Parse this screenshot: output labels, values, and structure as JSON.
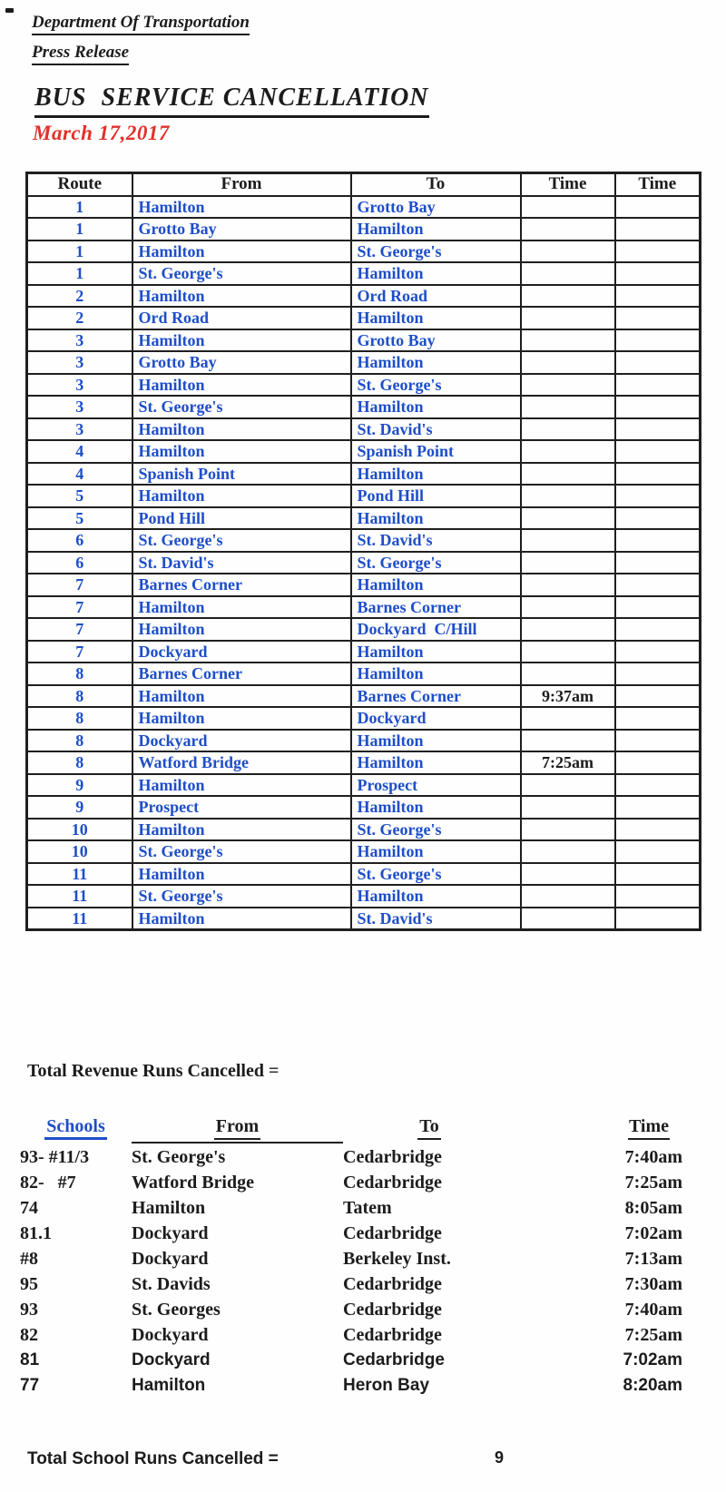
{
  "header": {
    "org_line": "Department Of Transportation",
    "press_line": "Press Release",
    "title": "BUS  SERVICE CANCELLATION",
    "date": "March 17,2017"
  },
  "colors": {
    "accent_blue": "#1e4ec8",
    "date_red": "#e2312a",
    "ink": "#1c1c1c"
  },
  "route_table": {
    "headers": [
      "Route",
      "From",
      "To",
      "Time",
      "Time"
    ],
    "rows": [
      {
        "route": "1",
        "from": "Hamilton",
        "to": "Grotto Bay",
        "time1": "",
        "time2": ""
      },
      {
        "route": "1",
        "from": "Grotto Bay",
        "to": "Hamilton",
        "time1": "",
        "time2": ""
      },
      {
        "route": "1",
        "from": "Hamilton",
        "to": "St. George's",
        "time1": "",
        "time2": ""
      },
      {
        "route": "1",
        "from": "St. George's",
        "to": "Hamilton",
        "time1": "",
        "time2": ""
      },
      {
        "route": "2",
        "from": "Hamilton",
        "to": "Ord Road",
        "time1": "",
        "time2": ""
      },
      {
        "route": "2",
        "from": "Ord Road",
        "to": "Hamilton",
        "time1": "",
        "time2": ""
      },
      {
        "route": "3",
        "from": "Hamilton",
        "to": "Grotto Bay",
        "time1": "",
        "time2": ""
      },
      {
        "route": "3",
        "from": "Grotto Bay",
        "to": "Hamilton",
        "time1": "",
        "time2": ""
      },
      {
        "route": "3",
        "from": "Hamilton",
        "to": "St. George's",
        "time1": "",
        "time2": ""
      },
      {
        "route": "3",
        "from": "St. George's",
        "to": "Hamilton",
        "time1": "",
        "time2": ""
      },
      {
        "route": "3",
        "from": "Hamilton",
        "to": "St. David's",
        "time1": "",
        "time2": ""
      },
      {
        "route": "4",
        "from": "Hamilton",
        "to": "Spanish Point",
        "time1": "",
        "time2": ""
      },
      {
        "route": "4",
        "from": "Spanish Point",
        "to": "Hamilton",
        "time1": "",
        "time2": ""
      },
      {
        "route": "5",
        "from": "Hamilton",
        "to": "Pond Hill",
        "time1": "",
        "time2": ""
      },
      {
        "route": "5",
        "from": "Pond Hill",
        "to": "Hamilton",
        "time1": "",
        "time2": ""
      },
      {
        "route": "6",
        "from": "St. George's",
        "to": "St. David's",
        "time1": "",
        "time2": ""
      },
      {
        "route": "6",
        "from": "St. David's",
        "to": "St. George's",
        "time1": "",
        "time2": ""
      },
      {
        "route": "7",
        "from": "Barnes Corner",
        "to": "Hamilton",
        "time1": "",
        "time2": ""
      },
      {
        "route": "7",
        "from": "Hamilton",
        "to": "Barnes Corner",
        "time1": "",
        "time2": ""
      },
      {
        "route": "7",
        "from": "Hamilton",
        "to": "Dockyard  C/Hill",
        "time1": "",
        "time2": ""
      },
      {
        "route": "7",
        "from": "Dockyard",
        "to": "Hamilton",
        "time1": "",
        "time2": ""
      },
      {
        "route": "8",
        "from": "Barnes Corner",
        "to": "Hamilton",
        "time1": "",
        "time2": ""
      },
      {
        "route": "8",
        "from": "Hamilton",
        "to": "Barnes Corner",
        "time1": "9:37am",
        "time2": ""
      },
      {
        "route": "8",
        "from": "Hamilton",
        "to": "Dockyard",
        "time1": "",
        "time2": ""
      },
      {
        "route": "8",
        "from": "Dockyard",
        "to": "Hamilton",
        "time1": "",
        "time2": ""
      },
      {
        "route": "8",
        "from": "Watford Bridge",
        "to": "Hamilton",
        "time1": "7:25am",
        "time2": ""
      },
      {
        "route": "9",
        "from": "Hamilton",
        "to": "Prospect",
        "time1": "",
        "time2": ""
      },
      {
        "route": "9",
        "from": "Prospect",
        "to": "Hamilton",
        "time1": "",
        "time2": ""
      },
      {
        "route": "10",
        "from": "Hamilton",
        "to": "St. George's",
        "time1": "",
        "time2": ""
      },
      {
        "route": "10",
        "from": "St. George's",
        "to": "Hamilton",
        "time1": "",
        "time2": ""
      },
      {
        "route": "11",
        "from": "Hamilton",
        "to": "St. George's",
        "time1": "",
        "time2": ""
      },
      {
        "route": "11",
        "from": "St. George's",
        "to": "Hamilton",
        "time1": "",
        "time2": ""
      },
      {
        "route": "11",
        "from": "Hamilton",
        "to": "St. David's",
        "time1": "",
        "time2": ""
      }
    ]
  },
  "totals": {
    "revenue_label": "Total Revenue Runs Cancelled =",
    "school_label": "Total School Runs Cancelled =",
    "school_value": "9"
  },
  "schools_table": {
    "headers": {
      "schools": "Schools",
      "from": "From",
      "to": "To",
      "time": "Time"
    },
    "rows": [
      {
        "id": "93- #11/3",
        "from": "St. George's",
        "to": "Cedarbridge",
        "time": "7:40am",
        "font": "serif"
      },
      {
        "id": "82-   #7",
        "from": "Watford Bridge",
        "to": "Cedarbridge",
        "time": "7:25am",
        "font": "serif"
      },
      {
        "id": "74",
        "from": "Hamilton",
        "to": "Tatem",
        "time": "8:05am",
        "font": "serif"
      },
      {
        "id": "81.1",
        "from": "Dockyard",
        "to": "Cedarbridge",
        "time": "7:02am",
        "font": "serif"
      },
      {
        "id": "#8",
        "from": "Dockyard",
        "to": "Berkeley Inst.",
        "time": "7:13am",
        "font": "serif"
      },
      {
        "id": "95",
        "from": "St. Davids",
        "to": "Cedarbridge",
        "time": "7:30am",
        "font": "serif"
      },
      {
        "id": "93",
        "from": "St. Georges",
        "to": "Cedarbridge",
        "time": "7:40am",
        "font": "serif"
      },
      {
        "id": "82",
        "from": "Dockyard",
        "to": "Cedarbridge",
        "time": "7:25am",
        "font": "serif"
      },
      {
        "id": "81",
        "from": "Dockyard",
        "to": "Cedarbridge",
        "time": "7:02am",
        "font": "sans"
      },
      {
        "id": "77",
        "from": "Hamilton",
        "to": "Heron Bay",
        "time": "8:20am",
        "font": "sans"
      }
    ]
  }
}
